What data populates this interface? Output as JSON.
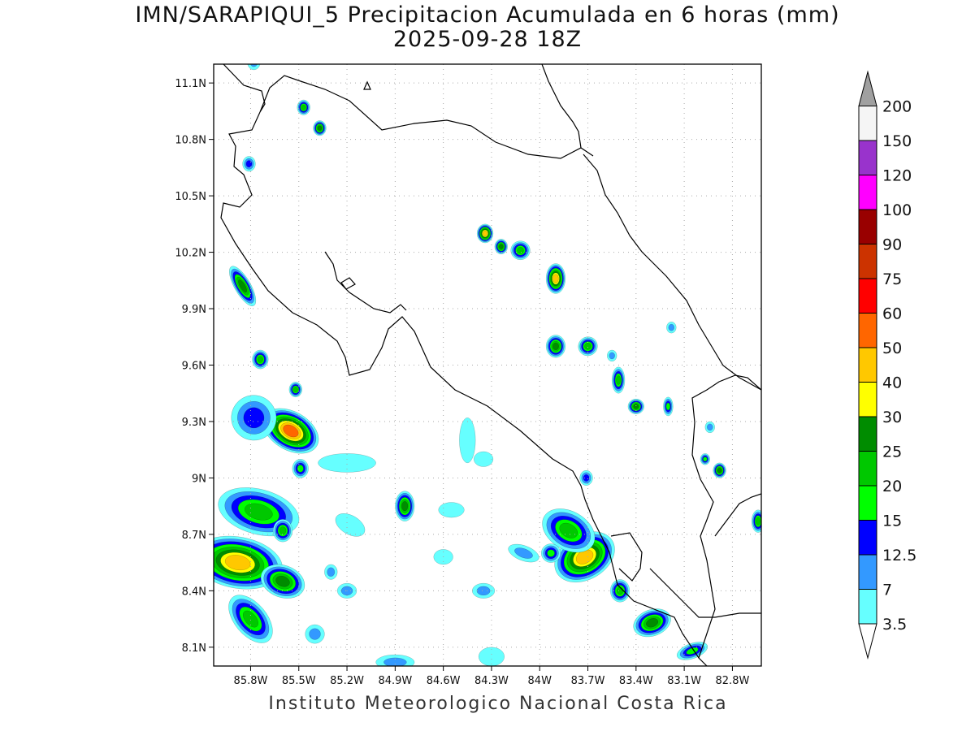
{
  "title": {
    "line1": "IMN/SARAPIQUI_5 Precipitacion Acumulada en 6 horas (mm)",
    "line2": "2025-09-28 18Z"
  },
  "credit": "Instituto Meteorologico Nacional Costa Rica",
  "map": {
    "lon_range": [
      -86.03,
      -82.62
    ],
    "lat_range": [
      8.0,
      11.2
    ],
    "grid": true,
    "lat_ticks": [
      {
        "value": 8.1,
        "label": "8.1N"
      },
      {
        "value": 8.4,
        "label": "8.4N"
      },
      {
        "value": 8.7,
        "label": "8.7N"
      },
      {
        "value": 9.0,
        "label": "9N"
      },
      {
        "value": 9.3,
        "label": "9.3N"
      },
      {
        "value": 9.6,
        "label": "9.6N"
      },
      {
        "value": 9.9,
        "label": "9.9N"
      },
      {
        "value": 10.2,
        "label": "10.2N"
      },
      {
        "value": 10.5,
        "label": "10.5N"
      },
      {
        "value": 10.8,
        "label": "10.8N"
      },
      {
        "value": 11.1,
        "label": "11.1N"
      }
    ],
    "lon_ticks": [
      {
        "value": -85.8,
        "label": "85.8W"
      },
      {
        "value": -85.5,
        "label": "85.5W"
      },
      {
        "value": -85.2,
        "label": "85.2W"
      },
      {
        "value": -84.9,
        "label": "84.9W"
      },
      {
        "value": -84.6,
        "label": "84.6W"
      },
      {
        "value": -84.3,
        "label": "84.3W"
      },
      {
        "value": -84.0,
        "label": "84W"
      },
      {
        "value": -83.7,
        "label": "83.7W"
      },
      {
        "value": -83.4,
        "label": "83.4W"
      },
      {
        "value": -83.1,
        "label": "83.1W"
      },
      {
        "value": -82.8,
        "label": "82.8W"
      }
    ],
    "rain_cells": [
      {
        "lon": -85.88,
        "lat": 8.55,
        "rx": 0.16,
        "ry": 0.24,
        "rot": 80,
        "peak": 40
      },
      {
        "lon": -85.55,
        "lat": 9.25,
        "rx": 0.12,
        "ry": 0.16,
        "rot": 60,
        "peak": 50
      },
      {
        "lon": -85.75,
        "lat": 8.82,
        "rx": 0.14,
        "ry": 0.22,
        "rot": 75,
        "peak": 20
      },
      {
        "lon": -85.6,
        "lat": 8.45,
        "rx": 0.1,
        "ry": 0.12,
        "rot": 70,
        "peak": 25
      },
      {
        "lon": -85.78,
        "lat": 9.32,
        "rx": 0.14,
        "ry": 0.12,
        "rot": 30,
        "peak": 12.5
      },
      {
        "lon": -85.85,
        "lat": 10.02,
        "rx": 0.05,
        "ry": 0.12,
        "rot": 30,
        "peak": 25
      },
      {
        "lon": -85.74,
        "lat": 9.63,
        "rx": 0.05,
        "ry": 0.05,
        "rot": 0,
        "peak": 20
      },
      {
        "lon": -85.8,
        "lat": 8.25,
        "rx": 0.1,
        "ry": 0.15,
        "rot": 40,
        "peak": 20
      },
      {
        "lon": -85.6,
        "lat": 8.72,
        "rx": 0.06,
        "ry": 0.06,
        "rot": 0,
        "peak": 20
      },
      {
        "lon": -85.49,
        "lat": 9.05,
        "rx": 0.05,
        "ry": 0.05,
        "rot": 0,
        "peak": 15
      },
      {
        "lon": -85.52,
        "lat": 9.47,
        "rx": 0.04,
        "ry": 0.04,
        "rot": 0,
        "peak": 20
      },
      {
        "lon": -84.84,
        "lat": 8.85,
        "rx": 0.06,
        "ry": 0.08,
        "rot": 0,
        "peak": 25
      },
      {
        "lon": -83.72,
        "lat": 8.58,
        "rx": 0.2,
        "ry": 0.12,
        "rot": 30,
        "peak": 40
      },
      {
        "lon": -83.82,
        "lat": 8.72,
        "rx": 0.12,
        "ry": 0.15,
        "rot": 60,
        "peak": 20
      },
      {
        "lon": -83.93,
        "lat": 8.6,
        "rx": 0.06,
        "ry": 0.05,
        "rot": 0,
        "peak": 15
      },
      {
        "lon": -83.5,
        "lat": 8.4,
        "rx": 0.06,
        "ry": 0.06,
        "rot": 0,
        "peak": 20
      },
      {
        "lon": -83.3,
        "lat": 8.23,
        "rx": 0.12,
        "ry": 0.07,
        "rot": 20,
        "peak": 25
      },
      {
        "lon": -83.05,
        "lat": 8.08,
        "rx": 0.1,
        "ry": 0.04,
        "rot": 20,
        "peak": 15
      },
      {
        "lon": -84.34,
        "lat": 10.3,
        "rx": 0.05,
        "ry": 0.05,
        "rot": 0,
        "peak": 40
      },
      {
        "lon": -84.24,
        "lat": 10.23,
        "rx": 0.04,
        "ry": 0.04,
        "rot": 0,
        "peak": 25
      },
      {
        "lon": -84.12,
        "lat": 10.21,
        "rx": 0.06,
        "ry": 0.05,
        "rot": 0,
        "peak": 20
      },
      {
        "lon": -83.9,
        "lat": 10.06,
        "rx": 0.06,
        "ry": 0.08,
        "rot": 0,
        "peak": 40
      },
      {
        "lon": -83.9,
        "lat": 9.7,
        "rx": 0.06,
        "ry": 0.06,
        "rot": 0,
        "peak": 25
      },
      {
        "lon": -83.7,
        "lat": 9.7,
        "rx": 0.06,
        "ry": 0.05,
        "rot": 30,
        "peak": 20
      },
      {
        "lon": -83.51,
        "lat": 9.52,
        "rx": 0.04,
        "ry": 0.07,
        "rot": 0,
        "peak": 20
      },
      {
        "lon": -83.4,
        "lat": 9.38,
        "rx": 0.05,
        "ry": 0.04,
        "rot": 0,
        "peak": 25
      },
      {
        "lon": -83.2,
        "lat": 9.38,
        "rx": 0.03,
        "ry": 0.05,
        "rot": 0,
        "peak": 15
      },
      {
        "lon": -85.37,
        "lat": 10.86,
        "rx": 0.04,
        "ry": 0.04,
        "rot": 0,
        "peak": 25
      },
      {
        "lon": -85.47,
        "lat": 10.97,
        "rx": 0.04,
        "ry": 0.04,
        "rot": 0,
        "peak": 20
      },
      {
        "lon": -85.81,
        "lat": 10.67,
        "rx": 0.04,
        "ry": 0.04,
        "rot": 0,
        "peak": 12.5
      },
      {
        "lon": -82.88,
        "lat": 9.04,
        "rx": 0.04,
        "ry": 0.04,
        "rot": 0,
        "peak": 25
      },
      {
        "lon": -82.97,
        "lat": 9.1,
        "rx": 0.03,
        "ry": 0.03,
        "rot": 0,
        "peak": 15
      },
      {
        "lon": -82.64,
        "lat": 8.77,
        "rx": 0.04,
        "ry": 0.06,
        "rot": 0,
        "peak": 20
      },
      {
        "lon": -83.71,
        "lat": 9.0,
        "rx": 0.04,
        "ry": 0.04,
        "rot": 0,
        "peak": 12.5
      },
      {
        "lon": -85.78,
        "lat": 11.21,
        "rx": 0.04,
        "ry": 0.04,
        "rot": 0,
        "peak": 7
      },
      {
        "lon": -84.55,
        "lat": 8.83,
        "rx": 0.08,
        "ry": 0.04,
        "rot": 0,
        "peak": 3.5
      },
      {
        "lon": -85.18,
        "lat": 8.75,
        "rx": 0.1,
        "ry": 0.05,
        "rot": -30,
        "peak": 3.5
      },
      {
        "lon": -84.35,
        "lat": 8.4,
        "rx": 0.07,
        "ry": 0.04,
        "rot": 0,
        "peak": 7
      },
      {
        "lon": -84.45,
        "lat": 9.2,
        "rx": 0.05,
        "ry": 0.12,
        "rot": 0,
        "peak": 3.5
      },
      {
        "lon": -85.2,
        "lat": 8.4,
        "rx": 0.06,
        "ry": 0.04,
        "rot": 0,
        "peak": 7
      },
      {
        "lon": -84.1,
        "lat": 8.6,
        "rx": 0.1,
        "ry": 0.04,
        "rot": -20,
        "peak": 7
      },
      {
        "lon": -85.3,
        "lat": 8.5,
        "rx": 0.04,
        "ry": 0.04,
        "rot": 0,
        "peak": 7
      },
      {
        "lon": -85.4,
        "lat": 8.17,
        "rx": 0.06,
        "ry": 0.05,
        "rot": 0,
        "peak": 7
      },
      {
        "lon": -84.3,
        "lat": 8.05,
        "rx": 0.08,
        "ry": 0.05,
        "rot": 0,
        "peak": 3.5
      },
      {
        "lon": -84.9,
        "lat": 8.02,
        "rx": 0.12,
        "ry": 0.04,
        "rot": 0,
        "peak": 7
      },
      {
        "lon": -84.6,
        "lat": 8.58,
        "rx": 0.06,
        "ry": 0.04,
        "rot": 0,
        "peak": 3.5
      },
      {
        "lon": -85.2,
        "lat": 9.08,
        "rx": 0.18,
        "ry": 0.05,
        "rot": 0,
        "peak": 3.5
      },
      {
        "lon": -83.18,
        "lat": 9.8,
        "rx": 0.03,
        "ry": 0.03,
        "rot": 0,
        "peak": 7
      },
      {
        "lon": -83.55,
        "lat": 9.65,
        "rx": 0.03,
        "ry": 0.03,
        "rot": 0,
        "peak": 7
      },
      {
        "lon": -84.35,
        "lat": 9.1,
        "rx": 0.06,
        "ry": 0.04,
        "rot": 0,
        "peak": 3.5
      },
      {
        "lon": -82.94,
        "lat": 9.27,
        "rx": 0.03,
        "ry": 0.03,
        "rot": 0,
        "peak": 7
      }
    ]
  },
  "legend": {
    "levels": [
      {
        "label": "3.5",
        "color": "#66ffff"
      },
      {
        "label": "7",
        "color": "#3399ff"
      },
      {
        "label": "12.5",
        "color": "#0000ff"
      },
      {
        "label": "15",
        "color": "#00ff00"
      },
      {
        "label": "20",
        "color": "#00c800"
      },
      {
        "label": "25",
        "color": "#008c00"
      },
      {
        "label": "30",
        "color": "#ffff00"
      },
      {
        "label": "40",
        "color": "#ffc800"
      },
      {
        "label": "50",
        "color": "#ff6600"
      },
      {
        "label": "60",
        "color": "#ff0000"
      },
      {
        "label": "75",
        "color": "#cc3300"
      },
      {
        "label": "90",
        "color": "#990000"
      },
      {
        "label": "100",
        "color": "#ff00ff"
      },
      {
        "label": "120",
        "color": "#9933cc"
      },
      {
        "label": "150",
        "color": "#f5f5f5"
      },
      {
        "label": "200",
        "color": "#a0a0a0"
      }
    ],
    "below_color": "#ffffff"
  }
}
